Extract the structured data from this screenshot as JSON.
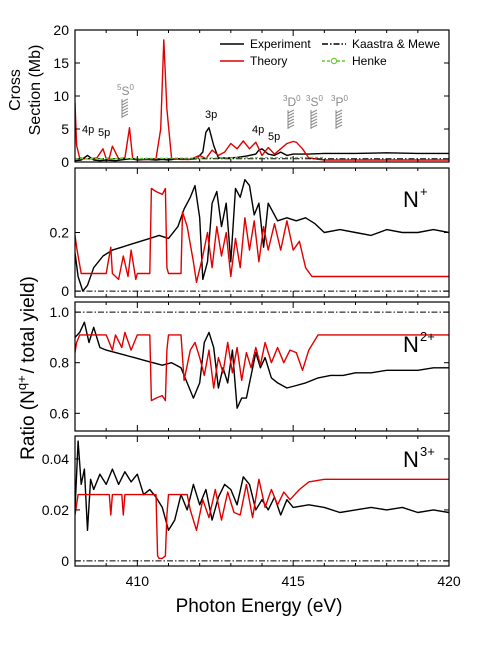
{
  "colors": {
    "experiment": "#000000",
    "theory": "#e00000",
    "kaastra": "#000000",
    "henke": "#66cc33",
    "hatch": "#8a8a8a"
  },
  "xlabel": "Photon Energy (eV)",
  "ratio_label": "Ratio (N",
  "ratio_label_sup": "q+",
  "ratio_label_end": "/ total yield)",
  "chart_data": [
    {
      "type": "line",
      "panel": "cross-section",
      "ylabel_line1": "Cross",
      "ylabel_line2": "Section (Mb)",
      "xlim": [
        408,
        420
      ],
      "ylim": [
        0,
        20
      ],
      "yticks": [
        "0",
        "5",
        "10",
        "15",
        "20"
      ],
      "legend": {
        "position": "top-right",
        "entries": [
          "Experiment",
          "Theory",
          "Kaastra & Mewe",
          "Henke"
        ]
      },
      "annotations": [
        "4p",
        "5p",
        "3p",
        "4p",
        "5p"
      ],
      "term_labels": [
        {
          "sup": "5",
          "term": "S",
          "sup2": "0"
        },
        {
          "sup": "3",
          "term": "D",
          "sup2": "0"
        },
        {
          "sup": "3",
          "term": "S",
          "sup2": "0"
        },
        {
          "sup": "3",
          "term": "P",
          "sup2": "0"
        }
      ],
      "series": [
        {
          "name": "Experiment",
          "x": [
            408.0,
            408.2,
            408.4,
            408.6,
            408.8,
            409.0,
            409.3,
            409.6,
            409.8,
            410.0,
            410.3,
            410.6,
            410.8,
            411.0,
            411.3,
            411.6,
            411.9,
            412.1,
            412.2,
            412.3,
            412.45,
            412.6,
            412.9,
            413.2,
            413.5,
            413.8,
            413.9,
            414.0,
            414.2,
            414.4,
            414.6,
            414.8,
            415.0,
            415.5,
            416.0,
            417.0,
            418.0,
            419.0,
            420.0
          ],
          "y": [
            0.2,
            0.3,
            1.0,
            0.3,
            0.2,
            0.3,
            0.2,
            0.4,
            0.5,
            0.3,
            0.4,
            0.3,
            0.4,
            0.3,
            0.5,
            0.4,
            0.5,
            1.5,
            4.5,
            5.2,
            2.5,
            0.6,
            0.6,
            0.7,
            0.9,
            1.2,
            1.8,
            2.0,
            1.2,
            1.0,
            1.5,
            1.0,
            1.2,
            1.2,
            1.3,
            1.3,
            1.4,
            1.3,
            1.3
          ]
        },
        {
          "name": "Theory",
          "x": [
            408.0,
            408.05,
            408.15,
            408.3,
            408.5,
            408.7,
            408.9,
            409.0,
            409.1,
            409.2,
            409.4,
            409.6,
            409.75,
            409.85,
            410.0,
            410.3,
            410.6,
            410.75,
            410.85,
            410.95,
            411.1,
            411.4,
            411.7,
            412.0,
            412.2,
            412.4,
            412.6,
            412.8,
            413.0,
            413.2,
            413.4,
            413.6,
            413.8,
            414.0,
            414.2,
            414.4,
            414.6,
            414.8,
            415.0,
            415.1,
            415.3,
            415.5,
            416.0,
            417.0,
            418.0,
            419.0,
            420.0
          ],
          "y": [
            9.0,
            2.5,
            0.6,
            0.5,
            0.5,
            0.6,
            2.0,
            0.5,
            0.6,
            2.4,
            0.5,
            0.6,
            5.2,
            0.5,
            0.4,
            0.4,
            0.5,
            5.0,
            18.5,
            8.0,
            0.5,
            0.4,
            0.4,
            1.0,
            0.5,
            1.8,
            1.0,
            1.5,
            2.8,
            2.0,
            3.2,
            2.0,
            3.0,
            1.0,
            2.2,
            1.2,
            2.0,
            2.8,
            3.1,
            3.0,
            2.0,
            0.6,
            0.3,
            0.3,
            0.3,
            0.3,
            0.3
          ]
        },
        {
          "name": "Kaastra & Mewe",
          "x": [
            408.0,
            420.0
          ],
          "y": [
            0.5,
            0.5
          ]
        },
        {
          "name": "Henke",
          "x": [
            408.0,
            410.0,
            412.0,
            414.0,
            415.5,
            416.0
          ],
          "y": [
            0.5,
            0.55,
            0.6,
            0.65,
            0.7,
            0.7
          ]
        }
      ]
    },
    {
      "type": "line",
      "panel": "ratio",
      "ion": "N",
      "ion_sup": "+",
      "xlim": [
        408,
        420
      ],
      "ylim": [
        -0.02,
        0.42
      ],
      "yticks": [
        "0",
        "0.2"
      ],
      "series": [
        {
          "name": "Experiment",
          "x": [
            408.0,
            408.1,
            408.25,
            408.4,
            408.6,
            408.9,
            409.2,
            409.5,
            409.8,
            410.1,
            410.4,
            410.7,
            411.0,
            411.3,
            411.5,
            411.7,
            411.85,
            412.0,
            412.1,
            412.25,
            412.4,
            412.55,
            412.7,
            412.85,
            413.0,
            413.15,
            413.3,
            413.45,
            413.6,
            413.75,
            413.9,
            414.05,
            414.2,
            414.35,
            414.5,
            414.8,
            415.1,
            415.4,
            415.7,
            416.0,
            416.5,
            417.0,
            417.5,
            418.0,
            418.5,
            419.0,
            419.5,
            420.0
          ],
          "y": [
            0.13,
            0.05,
            0.0,
            0.02,
            0.08,
            0.12,
            0.14,
            0.15,
            0.16,
            0.17,
            0.18,
            0.19,
            0.18,
            0.22,
            0.28,
            0.32,
            0.36,
            0.25,
            0.04,
            0.1,
            0.3,
            0.34,
            0.22,
            0.3,
            0.1,
            0.35,
            0.32,
            0.38,
            0.36,
            0.26,
            0.3,
            0.15,
            0.3,
            0.27,
            0.24,
            0.25,
            0.24,
            0.25,
            0.23,
            0.2,
            0.21,
            0.2,
            0.19,
            0.21,
            0.2,
            0.2,
            0.21,
            0.2
          ]
        },
        {
          "name": "Theory",
          "x": [
            408.0,
            408.05,
            408.1,
            408.2,
            408.4,
            408.7,
            409.0,
            409.15,
            409.2,
            409.4,
            409.55,
            409.7,
            409.8,
            409.95,
            410.0,
            410.4,
            410.45,
            410.6,
            410.8,
            410.9,
            410.95,
            411.0,
            411.4,
            411.45,
            411.6,
            411.8,
            411.9,
            412.1,
            412.25,
            412.4,
            412.55,
            412.7,
            412.85,
            413.0,
            413.15,
            413.3,
            413.45,
            413.6,
            413.75,
            413.9,
            414.05,
            414.2,
            414.4,
            414.6,
            414.8,
            415.0,
            415.2,
            415.4,
            415.6,
            416.0,
            417.0,
            418.0,
            419.0,
            420.0
          ],
          "y": [
            0.19,
            0.15,
            0.12,
            0.06,
            0.06,
            0.06,
            0.06,
            0.15,
            0.06,
            0.04,
            0.12,
            0.05,
            0.14,
            0.04,
            0.06,
            0.06,
            0.35,
            0.34,
            0.33,
            0.35,
            0.08,
            0.06,
            0.06,
            0.27,
            0.22,
            0.1,
            0.03,
            0.12,
            0.2,
            0.08,
            0.22,
            0.12,
            0.2,
            0.05,
            0.18,
            0.08,
            0.25,
            0.14,
            0.24,
            0.1,
            0.22,
            0.14,
            0.23,
            0.14,
            0.24,
            0.14,
            0.17,
            0.08,
            0.05,
            0.05,
            0.05,
            0.05,
            0.05,
            0.05
          ]
        },
        {
          "name": "Kaastra & Mewe",
          "x": [
            408.0,
            420.0
          ],
          "y": [
            0.0,
            0.0
          ]
        }
      ]
    },
    {
      "type": "line",
      "panel": "ratio",
      "ion": "N",
      "ion_sup": "2+",
      "xlim": [
        408,
        420
      ],
      "ylim": [
        0.53,
        1.04
      ],
      "yticks": [
        "0.6",
        "0.8",
        "1.0"
      ],
      "series": [
        {
          "name": "Experiment",
          "x": [
            408.0,
            408.15,
            408.3,
            408.45,
            408.6,
            408.8,
            409.0,
            409.3,
            409.6,
            409.9,
            410.2,
            410.5,
            410.8,
            411.1,
            411.4,
            411.6,
            411.8,
            412.0,
            412.15,
            412.3,
            412.45,
            412.6,
            412.75,
            412.9,
            413.05,
            413.2,
            413.35,
            413.5,
            413.65,
            413.8,
            413.95,
            414.1,
            414.3,
            414.5,
            414.8,
            415.1,
            415.4,
            415.8,
            416.2,
            416.6,
            417.0,
            417.5,
            418.0,
            418.5,
            419.0,
            419.5,
            420.0
          ],
          "y": [
            0.9,
            0.92,
            0.96,
            0.88,
            0.94,
            0.86,
            0.85,
            0.84,
            0.83,
            0.82,
            0.81,
            0.8,
            0.79,
            0.8,
            0.78,
            0.72,
            0.66,
            0.72,
            0.88,
            0.92,
            0.86,
            0.7,
            0.78,
            0.72,
            0.85,
            0.62,
            0.66,
            0.66,
            0.75,
            0.84,
            0.78,
            0.82,
            0.74,
            0.72,
            0.7,
            0.71,
            0.72,
            0.74,
            0.75,
            0.75,
            0.76,
            0.76,
            0.77,
            0.77,
            0.77,
            0.78,
            0.78
          ]
        },
        {
          "name": "Theory",
          "x": [
            408.0,
            408.05,
            408.15,
            408.3,
            408.6,
            409.0,
            409.2,
            409.3,
            409.5,
            409.6,
            409.8,
            410.0,
            410.4,
            410.45,
            410.6,
            410.8,
            410.9,
            410.95,
            411.0,
            411.4,
            411.5,
            411.7,
            411.85,
            412.0,
            412.15,
            412.3,
            412.45,
            412.6,
            412.75,
            412.9,
            413.05,
            413.2,
            413.35,
            413.5,
            413.65,
            413.8,
            413.95,
            414.1,
            414.3,
            414.5,
            414.7,
            414.9,
            415.1,
            415.3,
            415.5,
            415.8,
            416.0,
            417.0,
            418.0,
            419.0,
            420.0
          ],
          "y": [
            0.84,
            0.88,
            0.91,
            0.91,
            0.91,
            0.91,
            0.85,
            0.91,
            0.86,
            0.92,
            0.85,
            0.91,
            0.91,
            0.65,
            0.66,
            0.67,
            0.65,
            0.85,
            0.91,
            0.91,
            0.73,
            0.85,
            0.88,
            0.82,
            0.75,
            0.85,
            0.7,
            0.82,
            0.76,
            0.88,
            0.76,
            0.86,
            0.73,
            0.84,
            0.78,
            0.86,
            0.79,
            0.88,
            0.8,
            0.86,
            0.8,
            0.85,
            0.84,
            0.77,
            0.85,
            0.91,
            0.91,
            0.91,
            0.91,
            0.91,
            0.91
          ]
        },
        {
          "name": "Kaastra & Mewe",
          "x": [
            408.0,
            420.0
          ],
          "y": [
            1.0,
            1.0
          ]
        }
      ]
    },
    {
      "type": "line",
      "panel": "ratio",
      "ion": "N",
      "ion_sup": "3+",
      "xlim": [
        408,
        420
      ],
      "ylim": [
        -0.002,
        0.049
      ],
      "yticks": [
        "0",
        "0.02",
        "0.04"
      ],
      "series": [
        {
          "name": "Experiment",
          "x": [
            408.0,
            408.1,
            408.2,
            408.3,
            408.4,
            408.5,
            408.6,
            408.8,
            409.0,
            409.2,
            409.4,
            409.6,
            409.8,
            410.0,
            410.2,
            410.4,
            410.6,
            410.8,
            411.0,
            411.2,
            411.4,
            411.6,
            411.8,
            412.0,
            412.2,
            412.4,
            412.6,
            412.8,
            413.0,
            413.2,
            413.4,
            413.6,
            413.8,
            414.0,
            414.2,
            414.4,
            414.6,
            414.8,
            415.0,
            415.5,
            416.0,
            416.5,
            417.0,
            417.5,
            418.0,
            418.5,
            419.0,
            419.5,
            420.0
          ],
          "y": [
            0.02,
            0.047,
            0.03,
            0.036,
            0.012,
            0.032,
            0.028,
            0.034,
            0.03,
            0.036,
            0.03,
            0.035,
            0.031,
            0.034,
            0.026,
            0.028,
            0.025,
            0.021,
            0.012,
            0.016,
            0.026,
            0.02,
            0.03,
            0.022,
            0.028,
            0.016,
            0.025,
            0.03,
            0.028,
            0.022,
            0.033,
            0.03,
            0.02,
            0.024,
            0.02,
            0.025,
            0.018,
            0.024,
            0.021,
            0.022,
            0.021,
            0.019,
            0.02,
            0.021,
            0.02,
            0.021,
            0.019,
            0.02,
            0.019
          ]
        },
        {
          "name": "Theory",
          "x": [
            408.0,
            408.1,
            408.2,
            408.4,
            408.8,
            409.1,
            409.15,
            409.2,
            409.5,
            409.55,
            409.6,
            409.9,
            410.0,
            410.6,
            410.65,
            410.7,
            410.8,
            410.9,
            410.95,
            411.0,
            411.6,
            411.7,
            411.9,
            412.1,
            412.3,
            412.5,
            412.7,
            412.9,
            413.1,
            413.3,
            413.5,
            413.7,
            413.9,
            414.1,
            414.3,
            414.5,
            414.7,
            414.9,
            415.2,
            415.5,
            416.0,
            417.0,
            418.0,
            419.0,
            420.0
          ],
          "y": [
            0.018,
            0.026,
            0.026,
            0.026,
            0.026,
            0.026,
            0.018,
            0.026,
            0.026,
            0.018,
            0.026,
            0.026,
            0.026,
            0.026,
            0.002,
            0.001,
            0.001,
            0.002,
            0.018,
            0.026,
            0.026,
            0.02,
            0.012,
            0.024,
            0.017,
            0.028,
            0.016,
            0.027,
            0.019,
            0.018,
            0.03,
            0.017,
            0.032,
            0.021,
            0.028,
            0.022,
            0.027,
            0.024,
            0.028,
            0.031,
            0.032,
            0.032,
            0.032,
            0.032,
            0.032
          ]
        },
        {
          "name": "Kaastra & Mewe",
          "x": [
            408.0,
            420.0
          ],
          "y": [
            0.0,
            0.0
          ]
        }
      ]
    }
  ],
  "xticks": [
    "410",
    "415",
    "420"
  ]
}
